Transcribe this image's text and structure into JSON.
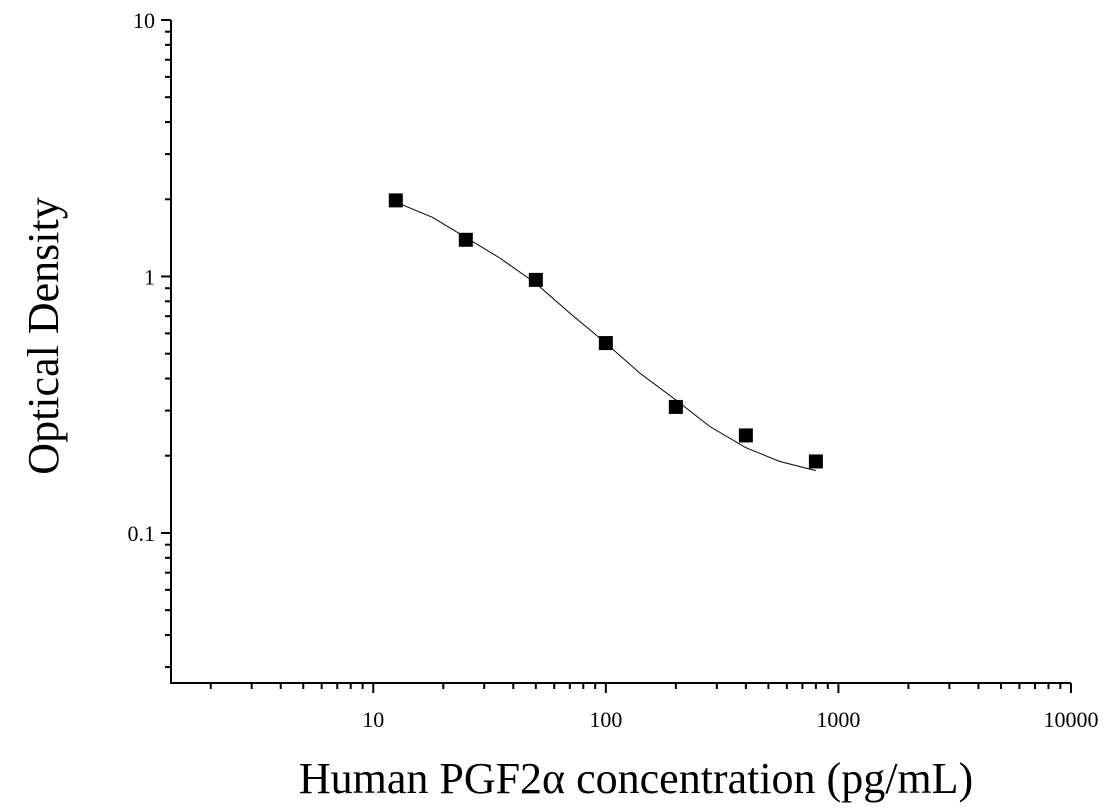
{
  "chart_data": {
    "type": "scatter",
    "title": "",
    "xlabel": "Human PGF2α concentration (pg/mL)",
    "ylabel": "Optical Density",
    "xscale": "log",
    "yscale": "log",
    "xlim": [
      1.35,
      10000
    ],
    "ylim": [
      0.026,
      10
    ],
    "xticks": [
      {
        "value": 10,
        "label": "10"
      },
      {
        "value": 100,
        "label": "100"
      },
      {
        "value": 1000,
        "label": "1000"
      },
      {
        "value": 10000,
        "label": "10000"
      }
    ],
    "yticks": [
      {
        "value": 0.1,
        "label": "0.1"
      },
      {
        "value": 1,
        "label": "1"
      },
      {
        "value": 10,
        "label": "10"
      }
    ],
    "grid": false,
    "legend": "none",
    "series": [
      {
        "marker": "square",
        "color": "#000000",
        "x": [
          12.5,
          25,
          50,
          100,
          200,
          400,
          800
        ],
        "y": [
          1.98,
          1.39,
          0.97,
          0.55,
          0.31,
          0.24,
          0.19
        ]
      }
    ],
    "fit_curve": {
      "color": "#000000",
      "x": [
        12.5,
        18,
        25,
        35,
        50,
        70,
        100,
        140,
        200,
        280,
        400,
        560,
        800
      ],
      "y": [
        1.95,
        1.7,
        1.42,
        1.18,
        0.94,
        0.72,
        0.55,
        0.42,
        0.33,
        0.26,
        0.215,
        0.19,
        0.175
      ]
    }
  }
}
